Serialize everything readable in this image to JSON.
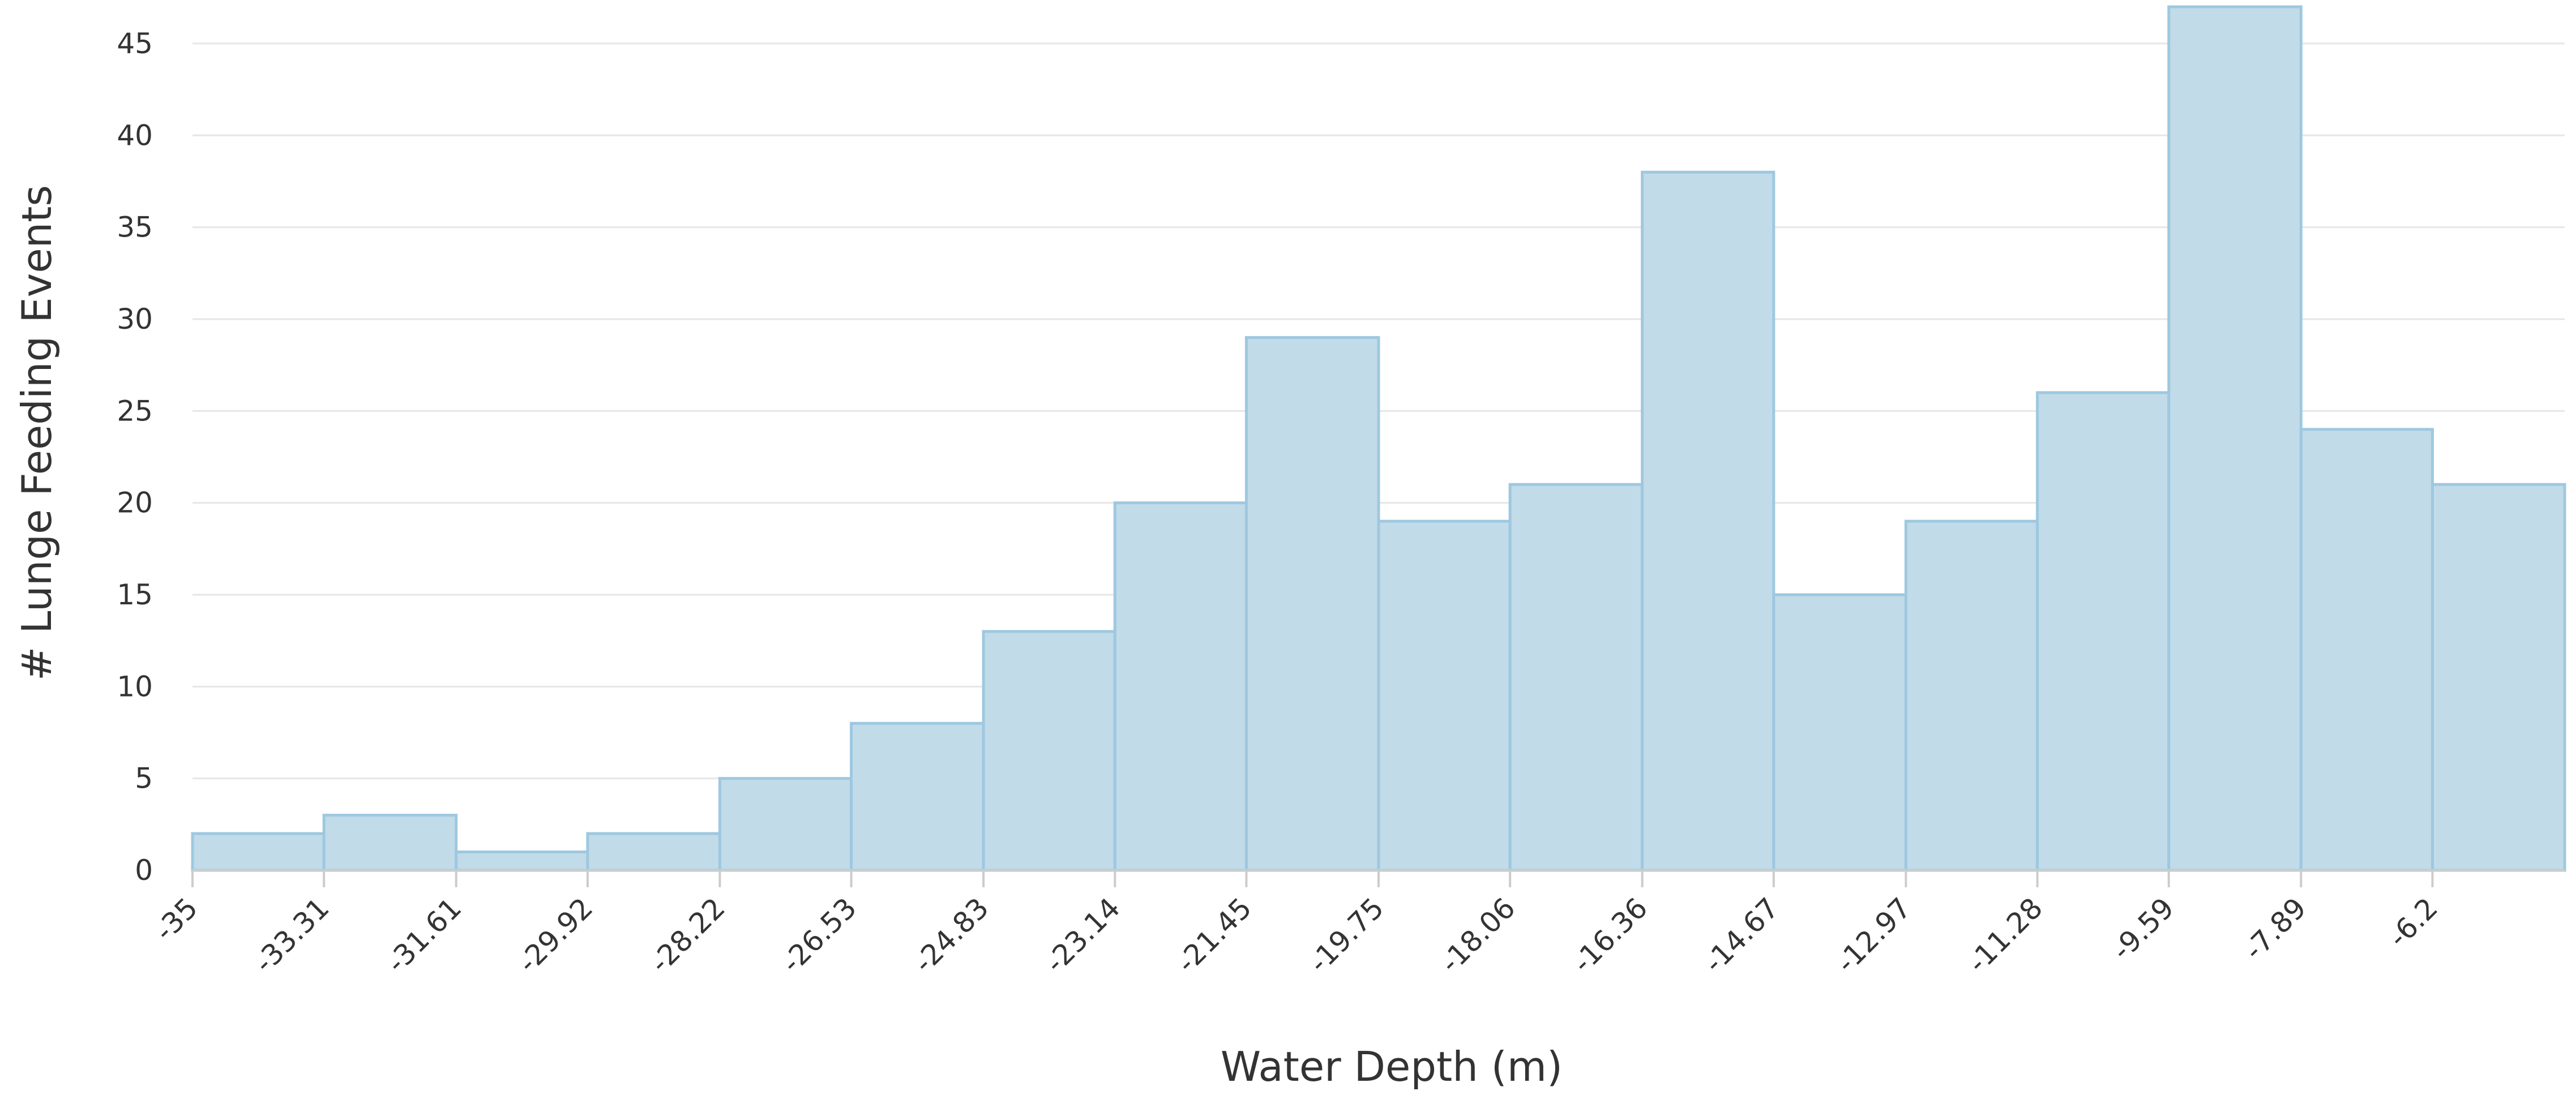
{
  "chart_data": {
    "type": "bar",
    "subtype": "histogram",
    "xlabel": "Water Depth (m)",
    "ylabel": "# Lunge Feeding Events",
    "bin_edges": [
      -35,
      -33.31,
      -31.61,
      -29.92,
      -28.22,
      -26.53,
      -24.83,
      -23.14,
      -21.45,
      -19.75,
      -18.06,
      -16.36,
      -14.67,
      -12.97,
      -11.28,
      -9.59,
      -7.89,
      -6.2,
      -4.5
    ],
    "x_tick_labels": [
      "-35",
      "-33.31",
      "-31.61",
      "-29.92",
      "-28.22",
      "-26.53",
      "-24.83",
      "-23.14",
      "-21.45",
      "-19.75",
      "-18.06",
      "-16.36",
      "-14.67",
      "-12.97",
      "-11.28",
      "-9.59",
      "-7.89",
      "-6.2"
    ],
    "values": [
      2,
      3,
      1,
      2,
      5,
      8,
      13,
      20,
      29,
      19,
      21,
      38,
      15,
      19,
      26,
      47,
      24,
      21
    ],
    "y_ticks": [
      0,
      5,
      10,
      15,
      20,
      25,
      30,
      35,
      40,
      45
    ],
    "ylim": [
      0,
      47
    ],
    "xlim": [
      -35,
      -4.5
    ],
    "grid": "horizontal",
    "legend": "none",
    "colors": {
      "bar_fill": "#c1dbe9",
      "bar_stroke": "#9ec8e0",
      "gridline": "#e6e6e6",
      "axis_line": "#cccccc",
      "text": "#333333"
    }
  }
}
